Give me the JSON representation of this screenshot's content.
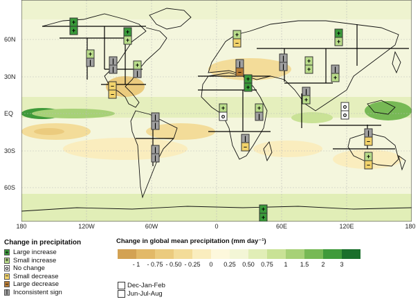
{
  "map": {
    "lat_labels": [
      "60N",
      "30N",
      "EQ",
      "30S",
      "60S"
    ],
    "lon_labels": [
      "180",
      "120W",
      "60W",
      "0",
      "60E",
      "120E",
      "180"
    ]
  },
  "legend": {
    "title": "Change in precipitation",
    "items": [
      {
        "label": "Large increase",
        "symbol": "+",
        "color": "#3a9a3a"
      },
      {
        "label": "Small increase",
        "symbol": "+",
        "color": "#b9dc8a"
      },
      {
        "label": "No change",
        "symbol": "o",
        "color": "#ffffff"
      },
      {
        "label": "Small decrease",
        "symbol": "–",
        "color": "#f2d36b"
      },
      {
        "label": "Large decrease",
        "symbol": "–",
        "color": "#b57a35"
      },
      {
        "label": "Inconsistent sign",
        "symbol": "|",
        "color": "#a0a0a0"
      }
    ]
  },
  "colorbar": {
    "title": "Change in global mean precipitation (mm day⁻¹)",
    "colors": [
      "#d3a253",
      "#e2b968",
      "#ebcb7e",
      "#f3dc99",
      "#faedbe",
      "#fdf8dc",
      "#f3f6d6",
      "#e1eeb7",
      "#c9e296",
      "#a7d177",
      "#77b955",
      "#3f9a3a",
      "#1a6f2b"
    ],
    "tick_labels": [
      "- 1",
      "- 0.75",
      "- 0.50",
      "- 0.25",
      "0",
      "0.25",
      "0.50",
      "0.75",
      "1",
      "1.5",
      "2",
      "3"
    ]
  },
  "seasons": {
    "items": [
      "Dec-Jan-Feb",
      "Jun-Jul-Aug"
    ]
  }
}
